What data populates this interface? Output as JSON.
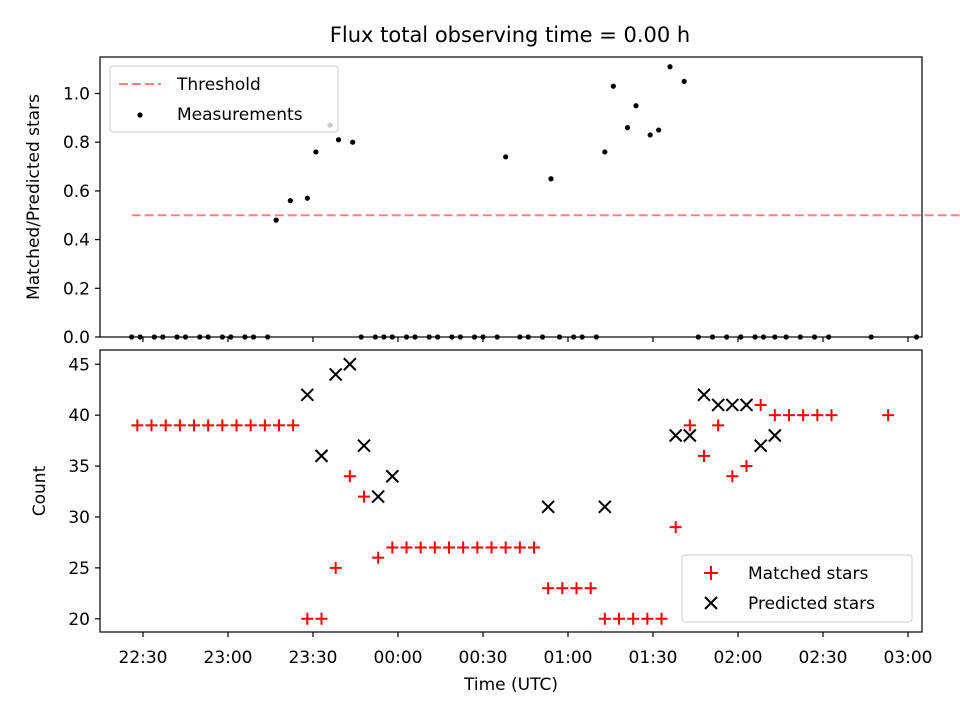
{
  "chart_data": [
    {
      "type": "scatter",
      "title": "Flux total observing time = 0.00 h",
      "xlabel": "",
      "ylabel": "Matched/Predicted stars",
      "ylim": [
        0,
        1.15
      ],
      "yticks": [
        "0.0",
        "0.2",
        "0.4",
        "0.6",
        "0.8",
        "1.0"
      ],
      "legend": {
        "position": "top-left",
        "entries": [
          "Threshold",
          "Measurements"
        ]
      },
      "colors": {
        "threshold": "#ff8080",
        "measurements": "#000000"
      },
      "threshold": {
        "name": "Threshold",
        "x": [
          "22:26",
          "03:24"
        ],
        "y": 0.5
      },
      "series": [
        {
          "name": "Measurements",
          "x": [
            "22:26",
            "22:29",
            "22:34",
            "22:37",
            "22:42",
            "22:45",
            "22:50",
            "22:53",
            "22:58",
            "23:01",
            "23:06",
            "23:09",
            "23:14",
            "23:17",
            "23:22",
            "23:28",
            "23:31",
            "23:36",
            "23:39",
            "23:44",
            "23:47",
            "23:52",
            "23:55",
            "23:58",
            "00:03",
            "00:06",
            "00:11",
            "00:14",
            "00:19",
            "00:22",
            "00:27",
            "00:30",
            "00:35",
            "00:38",
            "00:43",
            "00:46",
            "00:51",
            "00:54",
            "00:57",
            "01:02",
            "01:05",
            "01:10",
            "01:13",
            "01:16",
            "01:21",
            "01:24",
            "01:29",
            "01:32",
            "01:36",
            "01:41",
            "01:46",
            "01:51",
            "01:56",
            "02:01",
            "02:06",
            "02:09",
            "02:13",
            "02:17",
            "02:22",
            "02:27",
            "02:32",
            "02:47",
            "03:03",
            "03:24"
          ],
          "y": [
            0,
            0,
            0,
            0,
            0,
            0,
            0,
            0,
            0,
            0,
            0,
            0,
            0,
            0.48,
            0.56,
            0.57,
            0.76,
            0.87,
            0.81,
            0.8,
            0,
            0,
            0,
            0,
            0,
            0,
            0,
            0,
            0,
            0,
            0,
            0,
            0,
            0.74,
            0,
            0,
            0,
            0.65,
            0,
            0,
            0,
            0,
            0.76,
            1.03,
            0.86,
            0.95,
            0.83,
            0.85,
            1.11,
            1.05,
            0,
            0,
            0,
            0,
            0,
            0,
            0,
            0,
            0,
            0,
            0,
            0,
            0,
            0
          ]
        }
      ]
    },
    {
      "type": "scatter",
      "title": "",
      "xlabel": "Time (UTC)",
      "ylabel": "Count",
      "ylim": [
        18.7,
        46.4
      ],
      "yticks": [
        "20",
        "25",
        "30",
        "35",
        "40",
        "45"
      ],
      "xticks": [
        "22:30",
        "23:00",
        "23:30",
        "00:00",
        "00:30",
        "01:00",
        "01:30",
        "02:00",
        "02:30",
        "03:00"
      ],
      "legend": {
        "position": "bottom-right",
        "entries": [
          "Matched stars",
          "Predicted stars"
        ]
      },
      "colors": {
        "matched": "#ff0000",
        "predicted": "#000000"
      },
      "series": [
        {
          "name": "Matched stars",
          "x": [
            "22:28",
            "22:33",
            "22:38",
            "22:43",
            "22:48",
            "22:53",
            "22:58",
            "23:03",
            "23:08",
            "23:13",
            "23:18",
            "23:23",
            "23:28",
            "23:33",
            "23:38",
            "23:43",
            "23:48",
            "23:53",
            "23:58",
            "00:03",
            "00:08",
            "00:13",
            "00:18",
            "00:23",
            "00:28",
            "00:33",
            "00:38",
            "00:43",
            "00:48",
            "00:53",
            "00:58",
            "01:03",
            "01:08",
            "01:13",
            "01:18",
            "01:23",
            "01:28",
            "01:33",
            "01:38",
            "01:43",
            "01:48",
            "01:53",
            "01:58",
            "02:03",
            "02:08",
            "02:13",
            "02:18",
            "02:23",
            "02:28",
            "02:33",
            "02:53"
          ],
          "y": [
            39,
            39,
            39,
            39,
            39,
            39,
            39,
            39,
            39,
            39,
            39,
            39,
            20,
            20,
            25,
            34,
            32,
            26,
            27,
            27,
            27,
            27,
            27,
            27,
            27,
            27,
            27,
            27,
            27,
            23,
            23,
            23,
            23,
            20,
            20,
            20,
            20,
            20,
            29,
            39,
            36,
            39,
            34,
            35,
            41,
            40,
            40,
            40,
            40,
            40,
            40
          ]
        },
        {
          "name": "Predicted stars",
          "x": [
            "23:28",
            "23:33",
            "23:38",
            "23:43",
            "23:48",
            "23:53",
            "23:58",
            "00:53",
            "01:13",
            "01:38",
            "01:43",
            "01:48",
            "01:53",
            "01:58",
            "02:03",
            "02:08",
            "02:13"
          ],
          "y": [
            42,
            36,
            44,
            45,
            37,
            32,
            34,
            31,
            31,
            38,
            38,
            42,
            41,
            41,
            41,
            37,
            38
          ]
        }
      ]
    }
  ]
}
